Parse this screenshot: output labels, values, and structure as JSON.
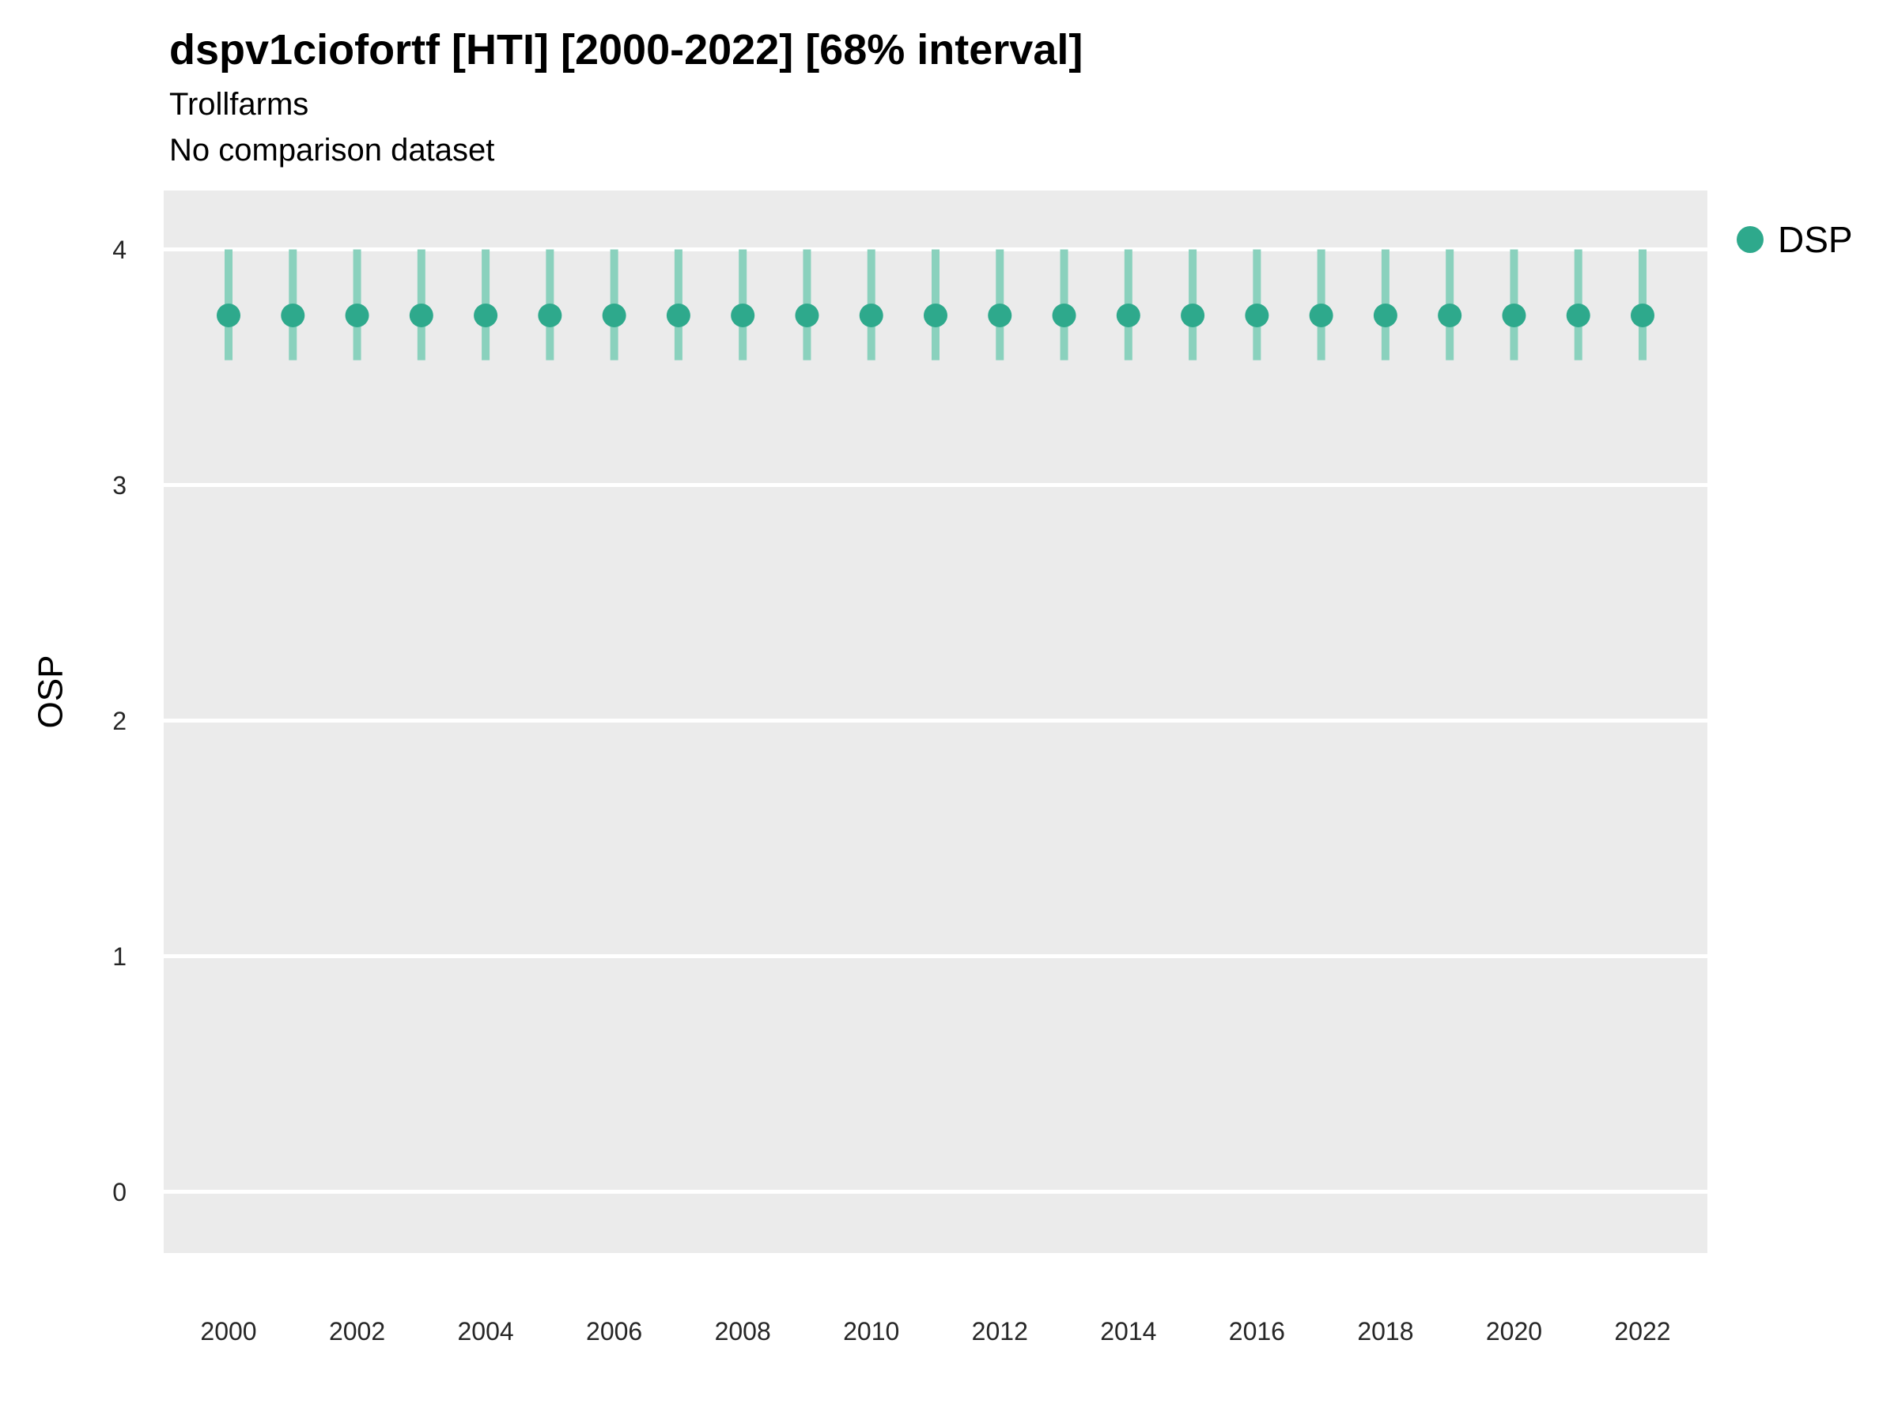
{
  "header": {
    "title": "dspv1ciofortf [HTI] [2000-2022] [68% interval]",
    "subtitle": "Trollfarms",
    "comparison_note": "No comparison dataset"
  },
  "colors": {
    "point": "#2ea98c",
    "interval": "#8ad1bd",
    "panel_bg": "#EBEBEB",
    "gridline": "#FFFFFF",
    "tick_text": "#262626"
  },
  "legend": {
    "items": [
      {
        "label": "DSP",
        "color": "#2ea98c"
      }
    ]
  },
  "chart_data": {
    "type": "scatter",
    "title": "dspv1ciofortf [HTI] [2000-2022] [68% interval]",
    "subtitle": "Trollfarms",
    "annotation": "No comparison dataset",
    "xlabel": "",
    "ylabel": "OSP",
    "ylim": [
      -0.26,
      4.25
    ],
    "yticks": [
      0,
      1,
      2,
      3,
      4
    ],
    "xticks": [
      2000,
      2002,
      2004,
      2006,
      2008,
      2010,
      2012,
      2014,
      2016,
      2018,
      2020,
      2022
    ],
    "x": [
      2000,
      2001,
      2002,
      2003,
      2004,
      2005,
      2006,
      2007,
      2008,
      2009,
      2010,
      2011,
      2012,
      2013,
      2014,
      2015,
      2016,
      2017,
      2018,
      2019,
      2020,
      2021,
      2022
    ],
    "series": [
      {
        "name": "DSP",
        "estimate": [
          3.72,
          3.72,
          3.72,
          3.72,
          3.72,
          3.72,
          3.72,
          3.72,
          3.72,
          3.72,
          3.72,
          3.72,
          3.72,
          3.72,
          3.72,
          3.72,
          3.72,
          3.72,
          3.72,
          3.72,
          3.72,
          3.72,
          3.72
        ],
        "lower": [
          3.53,
          3.53,
          3.53,
          3.53,
          3.53,
          3.53,
          3.53,
          3.53,
          3.53,
          3.53,
          3.53,
          3.53,
          3.53,
          3.53,
          3.53,
          3.53,
          3.53,
          3.53,
          3.53,
          3.53,
          3.53,
          3.53,
          3.53
        ],
        "upper": [
          4.0,
          4.0,
          4.0,
          4.0,
          4.0,
          4.0,
          4.0,
          4.0,
          4.0,
          4.0,
          4.0,
          4.0,
          4.0,
          4.0,
          4.0,
          4.0,
          4.0,
          4.0,
          4.0,
          4.0,
          4.0,
          4.0,
          4.0
        ]
      }
    ],
    "legend_position": "right",
    "grid": true,
    "interval_level": "68%"
  }
}
